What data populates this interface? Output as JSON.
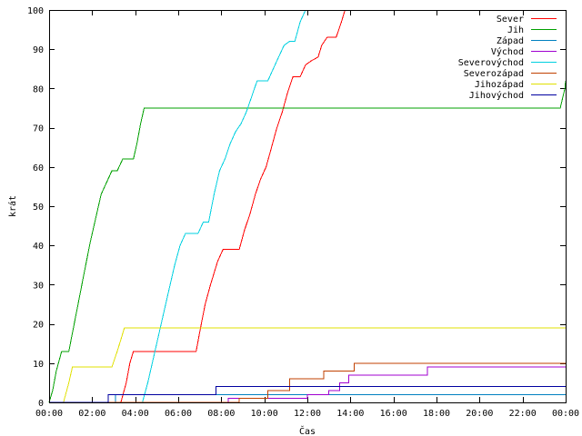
{
  "chart_data": {
    "type": "line",
    "title": "",
    "xlabel": "Čas",
    "ylabel": "krát",
    "xlim": [
      "00:00",
      "24:00"
    ],
    "ylim": [
      0,
      100
    ],
    "grid": false,
    "legend_position": "top-right",
    "x_ticks": [
      "00:00",
      "02:00",
      "04:00",
      "06:00",
      "08:00",
      "10:00",
      "12:00",
      "14:00",
      "16:00",
      "18:00",
      "20:00",
      "22:00",
      "00:00"
    ],
    "y_ticks": [
      0,
      10,
      20,
      30,
      40,
      50,
      60,
      70,
      80,
      90,
      100
    ],
    "series": [
      {
        "name": "Sever",
        "color": "#ff0000",
        "points": [
          [
            "00:00",
            0
          ],
          [
            "03:20",
            0
          ],
          [
            "03:35",
            5
          ],
          [
            "03:45",
            10
          ],
          [
            "03:55",
            13
          ],
          [
            "06:50",
            13
          ],
          [
            "07:00",
            18
          ],
          [
            "07:15",
            25
          ],
          [
            "07:30",
            30
          ],
          [
            "07:50",
            36
          ],
          [
            "08:05",
            39
          ],
          [
            "08:50",
            39
          ],
          [
            "09:05",
            44
          ],
          [
            "09:20",
            48
          ],
          [
            "09:35",
            53
          ],
          [
            "09:50",
            57
          ],
          [
            "10:05",
            60
          ],
          [
            "10:20",
            65
          ],
          [
            "10:35",
            70
          ],
          [
            "10:50",
            74
          ],
          [
            "11:05",
            79
          ],
          [
            "11:20",
            83
          ],
          [
            "11:40",
            83
          ],
          [
            "11:55",
            86
          ],
          [
            "12:10",
            87
          ],
          [
            "12:30",
            88
          ],
          [
            "12:40",
            91
          ],
          [
            "12:55",
            93
          ],
          [
            "13:20",
            93
          ],
          [
            "13:35",
            97
          ],
          [
            "13:45",
            100
          ]
        ]
      },
      {
        "name": "Jih",
        "color": "#00a000",
        "points": [
          [
            "00:00",
            0
          ],
          [
            "00:10",
            3
          ],
          [
            "00:20",
            8
          ],
          [
            "00:35",
            13
          ],
          [
            "00:55",
            13
          ],
          [
            "01:10",
            20
          ],
          [
            "01:25",
            27
          ],
          [
            "01:40",
            34
          ],
          [
            "01:55",
            41
          ],
          [
            "02:10",
            47
          ],
          [
            "02:25",
            53
          ],
          [
            "02:40",
            56
          ],
          [
            "02:55",
            59
          ],
          [
            "03:10",
            59
          ],
          [
            "03:25",
            62
          ],
          [
            "03:55",
            62
          ],
          [
            "04:05",
            66
          ],
          [
            "04:15",
            71
          ],
          [
            "04:25",
            75
          ],
          [
            "23:45",
            75
          ],
          [
            "23:50",
            77
          ],
          [
            "23:58",
            80
          ],
          [
            "24:00",
            82
          ]
        ]
      },
      {
        "name": "Západ",
        "color": "#0080c0",
        "points": [
          [
            "00:00",
            0
          ],
          [
            "03:05",
            0
          ],
          [
            "03:05",
            2
          ],
          [
            "24:00",
            2
          ]
        ]
      },
      {
        "name": "Východ",
        "color": "#a000d0",
        "points": [
          [
            "00:00",
            0
          ],
          [
            "08:20",
            0
          ],
          [
            "08:20",
            1
          ],
          [
            "12:00",
            1
          ],
          [
            "12:00",
            2
          ],
          [
            "13:00",
            2
          ],
          [
            "13:00",
            3
          ],
          [
            "13:30",
            3
          ],
          [
            "13:30",
            5
          ],
          [
            "13:55",
            5
          ],
          [
            "13:55",
            7
          ],
          [
            "17:35",
            7
          ],
          [
            "17:35",
            9
          ],
          [
            "24:00",
            9
          ]
        ]
      },
      {
        "name": "Severovýchod",
        "color": "#00d0e0",
        "points": [
          [
            "00:00",
            0
          ],
          [
            "04:20",
            0
          ],
          [
            "04:35",
            5
          ],
          [
            "04:50",
            11
          ],
          [
            "05:05",
            17
          ],
          [
            "05:20",
            23
          ],
          [
            "05:35",
            29
          ],
          [
            "05:50",
            35
          ],
          [
            "06:05",
            40
          ],
          [
            "06:20",
            43
          ],
          [
            "06:55",
            43
          ],
          [
            "07:10",
            46
          ],
          [
            "07:25",
            46
          ],
          [
            "07:40",
            53
          ],
          [
            "07:55",
            59
          ],
          [
            "08:10",
            62
          ],
          [
            "08:25",
            66
          ],
          [
            "08:40",
            69
          ],
          [
            "08:55",
            71
          ],
          [
            "09:10",
            74
          ],
          [
            "09:25",
            78
          ],
          [
            "09:40",
            82
          ],
          [
            "10:10",
            82
          ],
          [
            "10:25",
            85
          ],
          [
            "10:40",
            88
          ],
          [
            "10:55",
            91
          ],
          [
            "11:10",
            92
          ],
          [
            "11:25",
            92
          ],
          [
            "11:40",
            97
          ],
          [
            "11:55",
            100
          ]
        ]
      },
      {
        "name": "Severozápad",
        "color": "#c04000",
        "points": [
          [
            "00:00",
            0
          ],
          [
            "08:50",
            0
          ],
          [
            "08:50",
            1
          ],
          [
            "10:10",
            1
          ],
          [
            "10:10",
            3
          ],
          [
            "11:10",
            3
          ],
          [
            "11:10",
            6
          ],
          [
            "12:45",
            6
          ],
          [
            "12:45",
            8
          ],
          [
            "14:10",
            8
          ],
          [
            "14:10",
            10
          ],
          [
            "24:00",
            10
          ]
        ]
      },
      {
        "name": "Jihozápad",
        "color": "#e0e000",
        "points": [
          [
            "00:00",
            0
          ],
          [
            "00:40",
            0
          ],
          [
            "00:55",
            5
          ],
          [
            "01:05",
            9
          ],
          [
            "02:55",
            9
          ],
          [
            "03:10",
            13
          ],
          [
            "03:20",
            16
          ],
          [
            "03:30",
            19
          ],
          [
            "24:00",
            19
          ]
        ]
      },
      {
        "name": "Jihovýchod",
        "color": "#0000a0",
        "points": [
          [
            "00:00",
            0
          ],
          [
            "02:45",
            0
          ],
          [
            "02:45",
            2
          ],
          [
            "03:10",
            2
          ],
          [
            "03:10",
            2
          ],
          [
            "07:45",
            2
          ],
          [
            "07:45",
            4
          ],
          [
            "24:00",
            4
          ]
        ]
      }
    ]
  }
}
